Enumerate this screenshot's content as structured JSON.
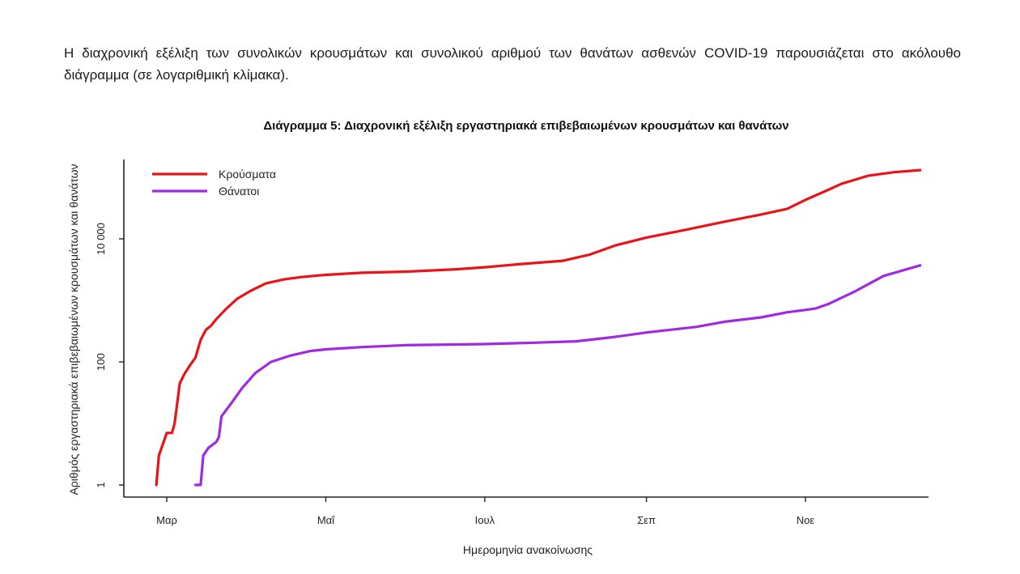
{
  "intro_text": "Η διαχρονική εξέλιξη των συνολικών κρουσμάτων και συνολικού αριθμού των θανάτων ασθενών COVID-19 παρουσιάζεται στο ακόλουθο διάγραμμα (σε λογαριθμική κλίμακα).",
  "chart_data": {
    "type": "line",
    "title": "Διάγραμμα 5: Διαχρονική εξέλιξη εργαστηριακά επιβεβαιωμένων κρουσμάτων και θανάτων",
    "xlabel": "Ημερομηνία ανακοίνωσης",
    "ylabel": "Αριθμός εργαστηριακά επιβεβαιωμένων κρουσμάτων και θανάτων",
    "y_scale": "log",
    "ylim": [
      1,
      100000
    ],
    "xlim": [
      "2020-02-20",
      "2020-12-16"
    ],
    "y_ticks": [
      {
        "value": 1,
        "label": "1"
      },
      {
        "value": 100,
        "label": "100"
      },
      {
        "value": 10000,
        "label": "10 000"
      }
    ],
    "x_ticks": [
      {
        "date": "2020-03-01",
        "label": "Μαρ"
      },
      {
        "date": "2020-05-01",
        "label": "Μαΐ"
      },
      {
        "date": "2020-07-01",
        "label": "Ιουλ"
      },
      {
        "date": "2020-09-01",
        "label": "Σεπ"
      },
      {
        "date": "2020-11-01",
        "label": "Νοε"
      }
    ],
    "legend_position": "top-left",
    "grid": false,
    "series": [
      {
        "name": "Κρούσματα",
        "color": "#e8141a",
        "points": [
          [
            "2020-02-26",
            1
          ],
          [
            "2020-02-27",
            3
          ],
          [
            "2020-02-28",
            4
          ],
          [
            "2020-03-01",
            7
          ],
          [
            "2020-03-03",
            7
          ],
          [
            "2020-03-04",
            10
          ],
          [
            "2020-03-06",
            45
          ],
          [
            "2020-03-08",
            66
          ],
          [
            "2020-03-10",
            89
          ],
          [
            "2020-03-12",
            117
          ],
          [
            "2020-03-14",
            228
          ],
          [
            "2020-03-16",
            331
          ],
          [
            "2020-03-18",
            387
          ],
          [
            "2020-03-20",
            495
          ],
          [
            "2020-03-24",
            743
          ],
          [
            "2020-03-28",
            1061
          ],
          [
            "2020-04-02",
            1415
          ],
          [
            "2020-04-08",
            1884
          ],
          [
            "2020-04-15",
            2192
          ],
          [
            "2020-04-22",
            2401
          ],
          [
            "2020-04-28",
            2534
          ],
          [
            "2020-05-01",
            2600
          ],
          [
            "2020-05-15",
            2810
          ],
          [
            "2020-06-01",
            2930
          ],
          [
            "2020-06-20",
            3200
          ],
          [
            "2020-07-01",
            3450
          ],
          [
            "2020-07-15",
            3900
          ],
          [
            "2020-07-31",
            4400
          ],
          [
            "2020-08-10",
            5500
          ],
          [
            "2020-08-20",
            7800
          ],
          [
            "2020-09-01",
            10500
          ],
          [
            "2020-09-15",
            13700
          ],
          [
            "2020-10-01",
            19000
          ],
          [
            "2020-10-15",
            24900
          ],
          [
            "2020-10-25",
            30800
          ],
          [
            "2020-11-01",
            43000
          ],
          [
            "2020-11-08",
            58000
          ],
          [
            "2020-11-15",
            79000
          ],
          [
            "2020-11-25",
            106000
          ],
          [
            "2020-12-05",
            121000
          ],
          [
            "2020-12-15",
            131000
          ]
        ]
      },
      {
        "name": "Θάνατοι",
        "color": "#a02ae2",
        "points": [
          [
            "2020-03-12",
            1
          ],
          [
            "2020-03-14",
            1
          ],
          [
            "2020-03-15",
            3
          ],
          [
            "2020-03-17",
            4
          ],
          [
            "2020-03-20",
            5
          ],
          [
            "2020-03-21",
            6
          ],
          [
            "2020-03-22",
            13
          ],
          [
            "2020-03-26",
            22
          ],
          [
            "2020-03-30",
            38
          ],
          [
            "2020-04-04",
            66
          ],
          [
            "2020-04-10",
            100
          ],
          [
            "2020-04-17",
            125
          ],
          [
            "2020-04-25",
            150
          ],
          [
            "2020-05-01",
            160
          ],
          [
            "2020-05-15",
            174
          ],
          [
            "2020-06-01",
            187
          ],
          [
            "2020-06-20",
            192
          ],
          [
            "2020-07-01",
            195
          ],
          [
            "2020-07-20",
            205
          ],
          [
            "2020-08-05",
            216
          ],
          [
            "2020-08-20",
            255
          ],
          [
            "2020-09-01",
            300
          ],
          [
            "2020-09-20",
            370
          ],
          [
            "2020-10-01",
            450
          ],
          [
            "2020-10-15",
            530
          ],
          [
            "2020-10-25",
            640
          ],
          [
            "2020-11-01",
            700
          ],
          [
            "2020-11-05",
            740
          ],
          [
            "2020-11-10",
            880
          ],
          [
            "2020-11-20",
            1400
          ],
          [
            "2020-12-01",
            2500
          ],
          [
            "2020-12-15",
            3700
          ]
        ]
      }
    ]
  }
}
